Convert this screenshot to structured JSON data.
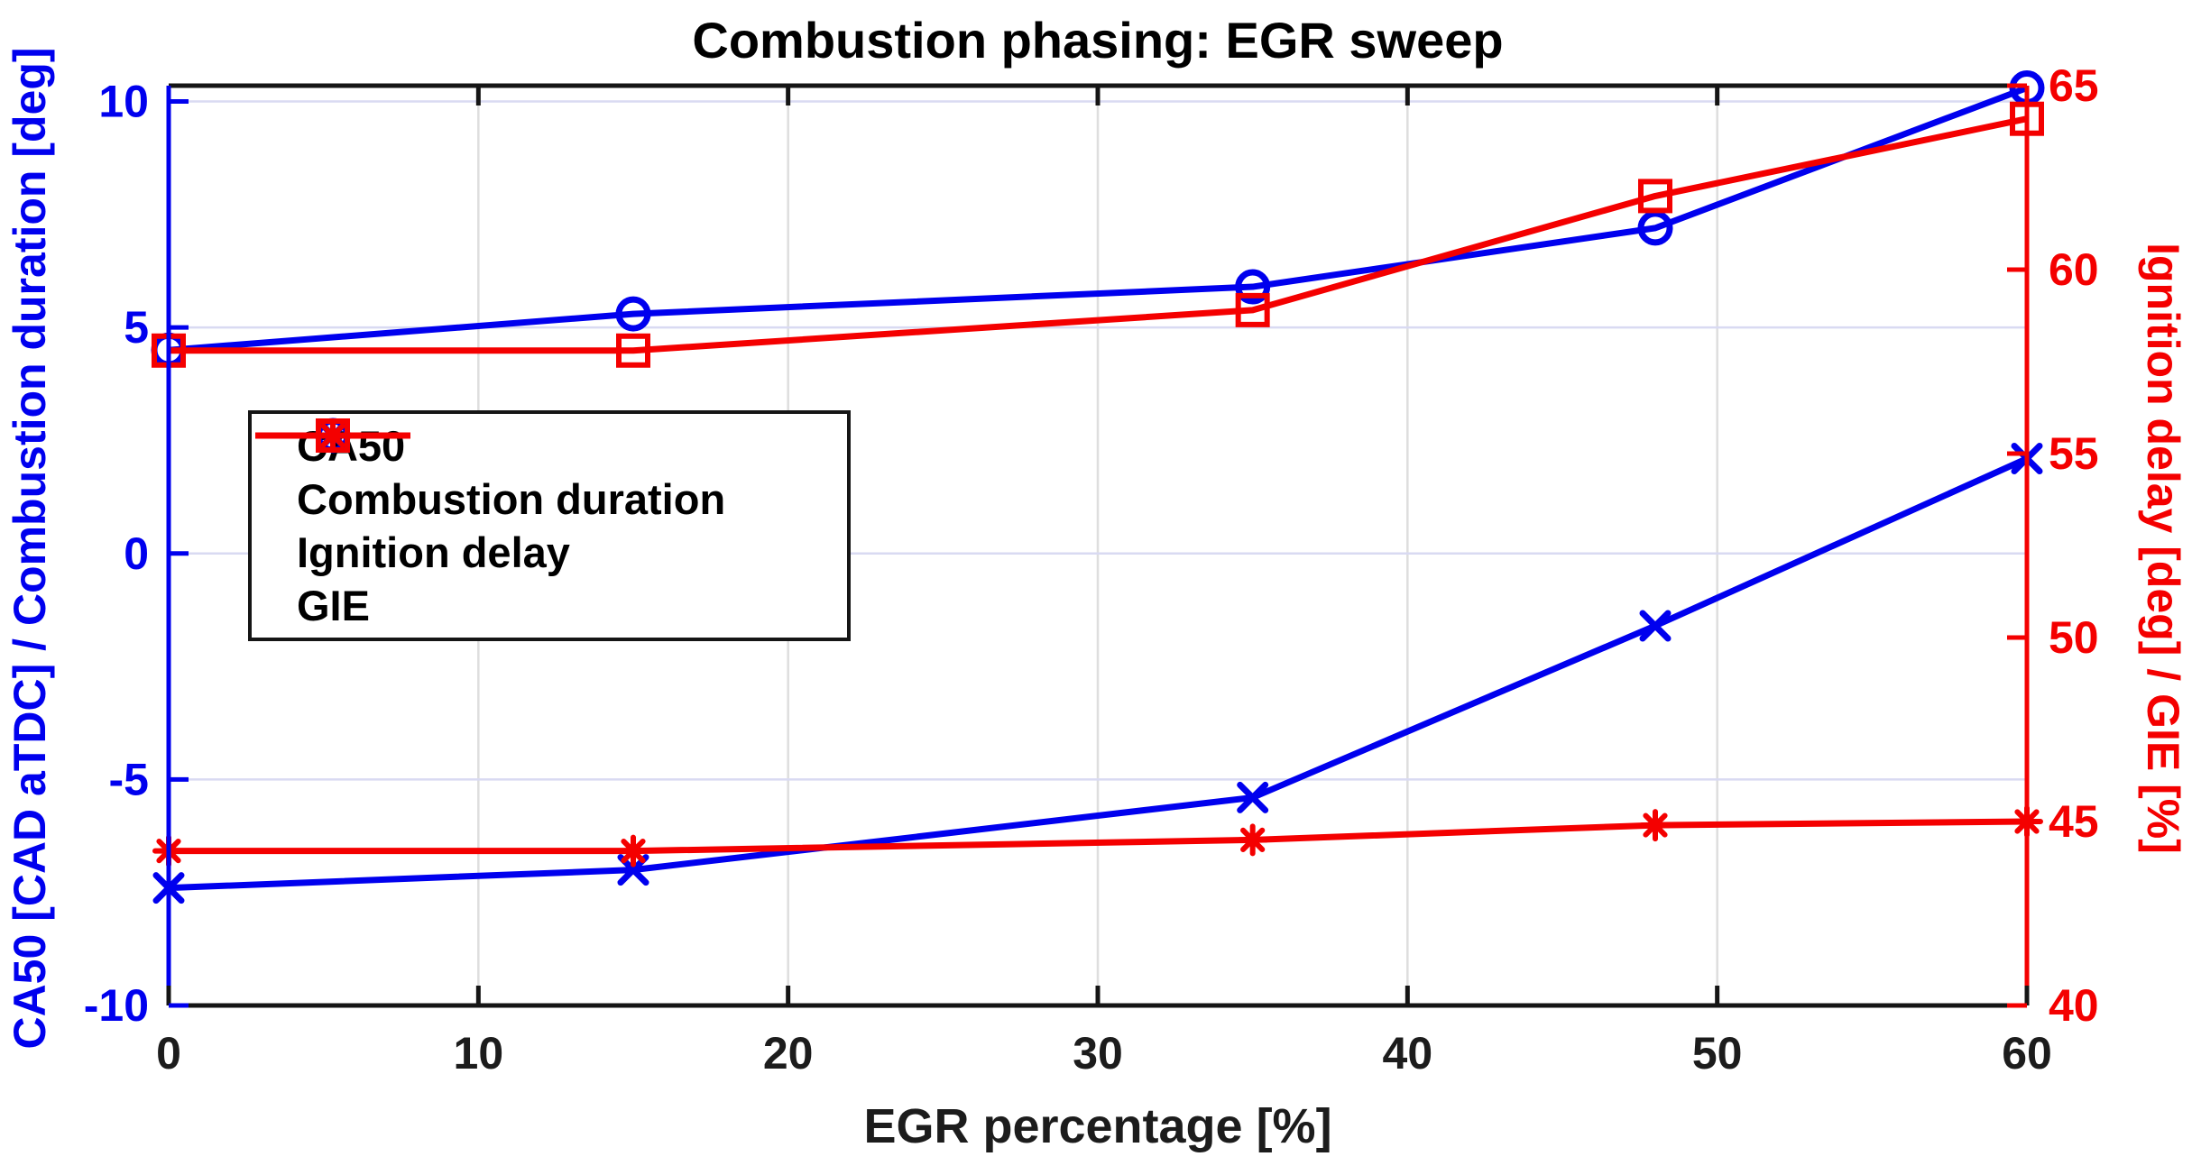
{
  "figure": {
    "background": "#ffffff"
  },
  "chart_data": {
    "type": "line",
    "title": "Combustion phasing: EGR sweep",
    "xlabel": "EGR percentage [%]",
    "ylabel_left": "CA50 [CAD aTDC] / Combustion duration [deg]",
    "ylabel_right": "Ignition delay [deg] / GIE [%]",
    "x": [
      0,
      15,
      35,
      48,
      60
    ],
    "xlim": [
      0,
      60
    ],
    "x_ticks": [
      0,
      10,
      20,
      30,
      40,
      50,
      60
    ],
    "ylim_left": [
      -10,
      10.35
    ],
    "y_ticks_left": [
      -10,
      -5,
      0,
      5,
      10
    ],
    "ylim_right": [
      40,
      65
    ],
    "y_ticks_right": [
      40,
      45,
      50,
      55,
      60,
      65
    ],
    "grid": true,
    "legend_position": "upper-left-inside",
    "series": [
      {
        "name": "CA50",
        "axis": "left",
        "color": "#0000EE",
        "marker": "x",
        "values": [
          -7.4,
          -7.0,
          -5.4,
          -1.6,
          2.1
        ]
      },
      {
        "name": "Combustion duration",
        "axis": "left",
        "color": "#0000EE",
        "marker": "circle",
        "values": [
          4.5,
          5.3,
          5.9,
          7.2,
          10.3
        ]
      },
      {
        "name": "Ignition delay",
        "axis": "right",
        "color": "#F40000",
        "marker": "square",
        "values": [
          57.8,
          57.8,
          58.9,
          62.0,
          64.1
        ]
      },
      {
        "name": "GIE",
        "axis": "right",
        "color": "#F40000",
        "marker": "asterisk",
        "values": [
          44.2,
          44.2,
          44.5,
          44.9,
          45.0
        ]
      }
    ],
    "colors": {
      "left_axis": "#0000EE",
      "right_axis": "#F40000",
      "box": "#151515",
      "grid_horizontal": "#d9daf2",
      "grid_vertical": "#dedede",
      "tick_text_x": "#1c1c1c"
    }
  }
}
